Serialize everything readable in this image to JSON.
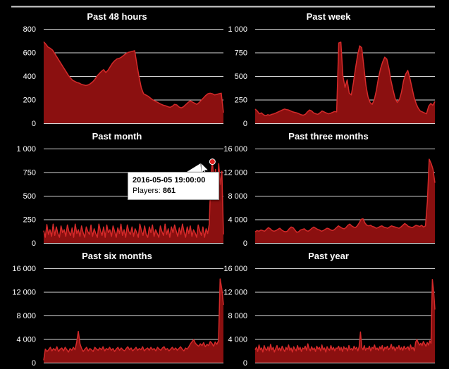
{
  "colors": {
    "background": "#000000",
    "fill": "#8b1010",
    "line": "#d42a2a",
    "grid": "#d8d8d8",
    "text": "#ffffff"
  },
  "chart_data": [
    {
      "type": "area",
      "title": "Past 48 hours",
      "yticks": [
        "800",
        "600",
        "400",
        "200",
        "0"
      ],
      "ylim": [
        0,
        800
      ],
      "values": [
        690,
        670,
        645,
        635,
        620,
        590,
        560,
        530,
        500,
        470,
        440,
        410,
        385,
        365,
        355,
        345,
        340,
        330,
        325,
        320,
        325,
        335,
        350,
        370,
        400,
        420,
        440,
        455,
        430,
        450,
        480,
        510,
        530,
        545,
        550,
        560,
        575,
        590,
        600,
        605,
        610,
        615,
        500,
        390,
        300,
        250,
        240,
        230,
        215,
        200,
        190,
        180,
        170,
        160,
        152,
        148,
        140,
        135,
        145,
        160,
        155,
        138,
        130,
        140,
        158,
        175,
        190,
        180,
        170,
        160,
        175,
        195,
        215,
        235,
        250,
        255,
        250,
        240,
        245,
        250,
        255,
        90
      ]
    },
    {
      "type": "area",
      "title": "Past week",
      "yticks": [
        "1 000",
        "750",
        "500",
        "250",
        "0"
      ],
      "ylim": [
        0,
        1000
      ],
      "values": [
        150,
        130,
        100,
        110,
        90,
        80,
        90,
        85,
        95,
        100,
        110,
        120,
        130,
        140,
        150,
        145,
        140,
        130,
        120,
        115,
        110,
        100,
        90,
        85,
        95,
        120,
        140,
        130,
        110,
        100,
        95,
        110,
        130,
        120,
        110,
        100,
        105,
        115,
        125,
        120,
        850,
        860,
        500,
        380,
        460,
        320,
        300,
        430,
        580,
        720,
        820,
        800,
        600,
        400,
        280,
        220,
        200,
        250,
        350,
        480,
        580,
        650,
        700,
        680,
        580,
        450,
        350,
        260,
        220,
        250,
        330,
        450,
        520,
        560,
        480,
        380,
        280,
        210,
        160,
        130,
        120,
        110,
        100,
        180,
        210,
        190,
        230
      ]
    },
    {
      "type": "area",
      "title": "Past month",
      "yticks": [
        "1 000",
        "750",
        "500",
        "250",
        "0"
      ],
      "ylim": [
        0,
        1000
      ],
      "values": [
        130,
        60,
        195,
        90,
        140,
        70,
        200,
        80,
        170,
        100,
        60,
        180,
        110,
        140,
        70,
        190,
        120,
        80,
        160,
        60,
        200,
        100,
        140,
        70,
        180,
        110,
        60,
        170,
        120,
        90,
        190,
        70,
        150,
        100,
        60,
        200,
        130,
        80,
        170,
        60,
        190,
        110,
        140,
        70,
        180,
        120,
        60,
        160,
        100,
        200,
        80,
        140,
        60,
        190,
        120,
        90,
        170,
        70,
        150,
        110,
        60,
        200,
        130,
        80,
        180,
        90,
        60,
        170,
        110,
        190,
        70,
        140,
        100,
        60,
        180,
        120,
        80,
        200,
        90,
        150,
        60,
        170,
        110,
        190,
        130,
        70,
        160,
        90,
        200,
        120,
        60,
        170,
        100,
        180,
        70,
        140,
        110,
        60,
        190,
        130,
        80,
        170,
        60,
        150,
        100,
        200,
        700,
        861,
        650,
        780,
        560,
        840,
        620,
        760,
        90
      ]
    },
    {
      "type": "area",
      "title": "Past three months",
      "yticks": [
        "16 000",
        "12 000",
        "8 000",
        "4 000",
        "0"
      ],
      "ylim": [
        0,
        16000
      ],
      "values": [
        1900,
        2100,
        2000,
        2200,
        2100,
        2000,
        2300,
        2600,
        2400,
        2100,
        2000,
        2100,
        2300,
        2500,
        2200,
        2000,
        1900,
        2000,
        2400,
        2700,
        2600,
        2200,
        1800,
        1900,
        2200,
        2300,
        2400,
        2100,
        2000,
        2200,
        2500,
        2700,
        2500,
        2300,
        2200,
        2000,
        2100,
        2300,
        2500,
        2400,
        2200,
        2100,
        2300,
        2600,
        2900,
        2700,
        2500,
        2400,
        2600,
        3000,
        3200,
        2900,
        2700,
        2600,
        2900,
        3400,
        4000,
        4100,
        3400,
        3000,
        2900,
        3000,
        2800,
        2700,
        2500,
        2600,
        2800,
        2900,
        2700,
        2600,
        2500,
        2700,
        2900,
        2800,
        2700,
        2600,
        2500,
        2700,
        3000,
        3300,
        3100,
        2800,
        2700,
        2600,
        2800,
        3000,
        2900,
        2800,
        3000,
        2700,
        2900,
        7000,
        14200,
        13500,
        12500,
        10200
      ]
    },
    {
      "type": "area",
      "title": "Past six months",
      "yticks": [
        "16 000",
        "12 000",
        "8 000",
        "4 000",
        "0"
      ],
      "ylim": [
        0,
        16000
      ],
      "values": [
        400,
        2300,
        1900,
        2200,
        2600,
        2000,
        2400,
        2100,
        2700,
        1900,
        2300,
        2500,
        2000,
        2600,
        2200,
        1800,
        2400,
        2100,
        2600,
        2200,
        3500,
        5300,
        3200,
        2400,
        1900,
        2300,
        2600,
        2000,
        2400,
        2200,
        1900,
        2600,
        2300,
        2100,
        2500,
        2200,
        2700,
        2000,
        2400,
        2200,
        2600,
        2100,
        2400,
        1900,
        2300,
        2600,
        2100,
        2500,
        2200,
        2000,
        2400,
        2700,
        2200,
        2500,
        2000,
        2300,
        2600,
        2100,
        2400,
        2200,
        2700,
        2000,
        2300,
        2500,
        2100,
        2600,
        2200,
        2400,
        2000,
        2600,
        2300,
        2100,
        2500,
        2700,
        2200,
        2400,
        2000,
        2300,
        2600,
        2200,
        2500,
        2100,
        2400,
        2700,
        2300,
        2000,
        2500,
        2300,
        2700,
        3200,
        3600,
        3900,
        3300,
        3000,
        2800,
        3200,
        2900,
        3400,
        2700,
        3100,
        2900,
        3600,
        3300,
        2800,
        3500,
        3100,
        3700,
        14200,
        12500,
        9800
      ]
    },
    {
      "type": "area",
      "title": "Past year",
      "yticks": [
        "16 000",
        "12 000",
        "8 000",
        "4 000",
        "0"
      ],
      "ylim": [
        0,
        16000
      ],
      "values": [
        2200,
        2600,
        1900,
        3000,
        2200,
        2500,
        1800,
        2900,
        2300,
        2100,
        2700,
        2000,
        3100,
        2200,
        2600,
        1800,
        2400,
        2900,
        2100,
        2500,
        2000,
        2800,
        2300,
        1900,
        2600,
        2200,
        3000,
        2100,
        2500,
        1800,
        2700,
        2300,
        2000,
        2900,
        2200,
        2600,
        1900,
        2500,
        2300,
        2800,
        2100,
        3200,
        2400,
        2000,
        2700,
        2200,
        2500,
        1900,
        2800,
        2300,
        2600,
        2000,
        3000,
        2200,
        2500,
        1800,
        2700,
        2300,
        2100,
        2900,
        2200,
        2600,
        2000,
        2500,
        2400,
        2800,
        2100,
        2600,
        1900,
        2700,
        2300,
        2500,
        2000,
        2900,
        2200,
        2400,
        2100,
        2800,
        2300,
        2600,
        2000,
        2700,
        5200,
        2600,
        2200,
        2900,
        2100,
        2500,
        2300,
        2800,
        2000,
        2600,
        2400,
        3000,
        2200,
        2500,
        2100,
        2700,
        2300,
        2900,
        2000,
        2600,
        2400,
        2800,
        2200,
        2500,
        3100,
        2300,
        2700,
        2000,
        2600,
        2400,
        2900,
        2200,
        2600,
        2100,
        2800,
        2300,
        2500,
        2700,
        2100,
        3000,
        2300,
        2600,
        2000,
        3500,
        3900,
        3400,
        3000,
        3300,
        2900,
        3600,
        3200,
        2800,
        3400,
        3000,
        3700,
        3300,
        14100,
        12200,
        9000
      ]
    }
  ],
  "tooltip": {
    "title": "2016-05-05 19:00:00",
    "label": "Players:",
    "value": "861"
  }
}
